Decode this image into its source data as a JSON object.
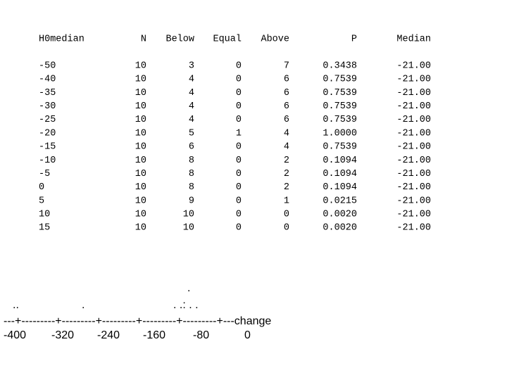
{
  "table": {
    "header": [
      "H0median",
      "N",
      "Below",
      "Equal",
      "Above",
      "P",
      "Median"
    ],
    "rows": [
      [
        "-50",
        "10",
        "3",
        "0",
        "7",
        "0.3438",
        "-21.00"
      ],
      [
        "-40",
        "10",
        "4",
        "0",
        "6",
        "0.7539",
        "-21.00"
      ],
      [
        "-35",
        "10",
        "4",
        "0",
        "6",
        "0.7539",
        "-21.00"
      ],
      [
        "-30",
        "10",
        "4",
        "0",
        "6",
        "0.7539",
        "-21.00"
      ],
      [
        "-25",
        "10",
        "4",
        "0",
        "6",
        "0.7539",
        "-21.00"
      ],
      [
        "-20",
        "10",
        "5",
        "1",
        "4",
        "1.0000",
        "-21.00"
      ],
      [
        "-15",
        "10",
        "6",
        "0",
        "4",
        "0.7539",
        "-21.00"
      ],
      [
        "-10",
        "10",
        "8",
        "0",
        "2",
        "0.1094",
        "-21.00"
      ],
      [
        "-5",
        "10",
        "8",
        "0",
        "2",
        "0.1094",
        "-21.00"
      ],
      [
        "0",
        "10",
        "8",
        "0",
        "2",
        "0.1094",
        "-21.00"
      ],
      [
        "5",
        "10",
        "9",
        "0",
        "1",
        "0.0215",
        "-21.00"
      ],
      [
        "10",
        "10",
        "10",
        "0",
        "0",
        "0.0020",
        "-21.00"
      ],
      [
        "15",
        "10",
        "10",
        "0",
        "0",
        "0.0020",
        "-21.00"
      ]
    ]
  },
  "plot": {
    "dots_top": ".",
    "dots": [
      "..",
      ".",
      ". .: . ."
    ],
    "axis": "---+---------+---------+---------+---------+---------+---change",
    "axis_labels": [
      "-400",
      "-320",
      "-240",
      "-160",
      "-80",
      "0"
    ]
  }
}
